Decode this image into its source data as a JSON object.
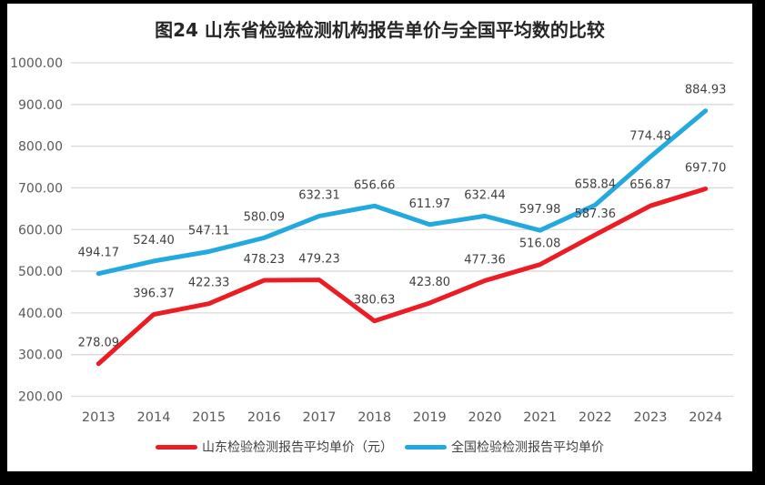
{
  "page": {
    "frame_color": "#000000",
    "background": "#ffffff"
  },
  "title": "图24  山东省检验检测机构报告单价与全国平均数的比较",
  "chart_data": {
    "type": "line",
    "title": "图24  山东省检验检测机构报告单价与全国平均数的比较",
    "categories": [
      "2013",
      "2014",
      "2015",
      "2016",
      "2017",
      "2018",
      "2019",
      "2020",
      "2021",
      "2022",
      "2023",
      "2024"
    ],
    "series": [
      {
        "name": "山东检验检测报告平均单价（元）",
        "color": "#ec1c24",
        "values": [
          278.09,
          396.37,
          422.33,
          478.23,
          479.23,
          380.63,
          423.8,
          477.36,
          516.08,
          587.36,
          656.87,
          697.7
        ]
      },
      {
        "name": "全国检验检测报告平均单价",
        "color": "#24a8e0",
        "values": [
          494.17,
          524.4,
          547.11,
          580.09,
          632.31,
          656.66,
          611.97,
          632.44,
          597.98,
          658.84,
          774.48,
          884.93
        ]
      }
    ],
    "ylim": [
      200,
      1000
    ],
    "ytick_step": 100,
    "ytick_labels": [
      "200.00",
      "300.00",
      "400.00",
      "500.00",
      "600.00",
      "700.00",
      "800.00",
      "900.00",
      "1000.00"
    ],
    "xlabel": "",
    "ylabel": "",
    "grid": "horizontal",
    "data_labels": true,
    "legend_position": "bottom",
    "gridline_color": "#d9d9d9",
    "axis_label_color": "#595959",
    "data_label_color": "#404040"
  }
}
